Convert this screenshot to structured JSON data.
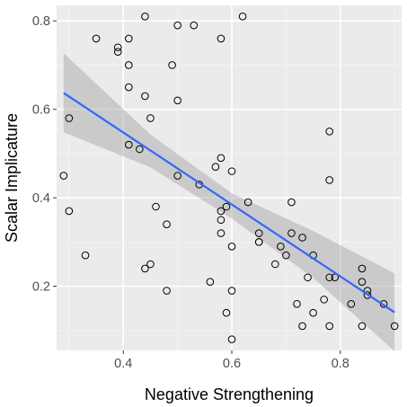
{
  "chart_data": {
    "type": "scatter",
    "title": "",
    "xlabel": "Negative Strengthening",
    "ylabel": "Scalar Implicature",
    "xlim": [
      0.277,
      0.913
    ],
    "ylim": [
      0.055,
      0.835
    ],
    "xticks": [
      0.4,
      0.6,
      0.8
    ],
    "xtick_labels": [
      "0.4",
      "0.6",
      "0.8"
    ],
    "yticks": [
      0.2,
      0.4,
      0.6,
      0.8
    ],
    "ytick_labels": [
      "0.2",
      "0.4",
      "0.6",
      "0.8"
    ],
    "grid": true,
    "legend": "none",
    "points": [
      {
        "x": 0.29,
        "y": 0.45
      },
      {
        "x": 0.3,
        "y": 0.58
      },
      {
        "x": 0.3,
        "y": 0.37
      },
      {
        "x": 0.33,
        "y": 0.27
      },
      {
        "x": 0.35,
        "y": 0.76
      },
      {
        "x": 0.39,
        "y": 0.74
      },
      {
        "x": 0.39,
        "y": 0.73
      },
      {
        "x": 0.41,
        "y": 0.76
      },
      {
        "x": 0.41,
        "y": 0.7
      },
      {
        "x": 0.41,
        "y": 0.65
      },
      {
        "x": 0.41,
        "y": 0.52
      },
      {
        "x": 0.43,
        "y": 0.51
      },
      {
        "x": 0.44,
        "y": 0.81
      },
      {
        "x": 0.44,
        "y": 0.63
      },
      {
        "x": 0.45,
        "y": 0.58
      },
      {
        "x": 0.44,
        "y": 0.24
      },
      {
        "x": 0.45,
        "y": 0.25
      },
      {
        "x": 0.46,
        "y": 0.38
      },
      {
        "x": 0.48,
        "y": 0.34
      },
      {
        "x": 0.48,
        "y": 0.19
      },
      {
        "x": 0.49,
        "y": 0.7
      },
      {
        "x": 0.5,
        "y": 0.79
      },
      {
        "x": 0.5,
        "y": 0.62
      },
      {
        "x": 0.5,
        "y": 0.45
      },
      {
        "x": 0.53,
        "y": 0.79
      },
      {
        "x": 0.54,
        "y": 0.43
      },
      {
        "x": 0.56,
        "y": 0.21
      },
      {
        "x": 0.57,
        "y": 0.47
      },
      {
        "x": 0.58,
        "y": 0.76
      },
      {
        "x": 0.58,
        "y": 0.49
      },
      {
        "x": 0.58,
        "y": 0.37
      },
      {
        "x": 0.58,
        "y": 0.35
      },
      {
        "x": 0.58,
        "y": 0.32
      },
      {
        "x": 0.59,
        "y": 0.38
      },
      {
        "x": 0.59,
        "y": 0.14
      },
      {
        "x": 0.6,
        "y": 0.46
      },
      {
        "x": 0.6,
        "y": 0.29
      },
      {
        "x": 0.6,
        "y": 0.19
      },
      {
        "x": 0.6,
        "y": 0.08
      },
      {
        "x": 0.62,
        "y": 0.81
      },
      {
        "x": 0.63,
        "y": 0.39
      },
      {
        "x": 0.65,
        "y": 0.32
      },
      {
        "x": 0.65,
        "y": 0.3
      },
      {
        "x": 0.65,
        "y": 0.3
      },
      {
        "x": 0.68,
        "y": 0.25
      },
      {
        "x": 0.69,
        "y": 0.29
      },
      {
        "x": 0.7,
        "y": 0.27
      },
      {
        "x": 0.71,
        "y": 0.39
      },
      {
        "x": 0.71,
        "y": 0.32
      },
      {
        "x": 0.72,
        "y": 0.16
      },
      {
        "x": 0.73,
        "y": 0.31
      },
      {
        "x": 0.73,
        "y": 0.11
      },
      {
        "x": 0.74,
        "y": 0.22
      },
      {
        "x": 0.75,
        "y": 0.27
      },
      {
        "x": 0.75,
        "y": 0.14
      },
      {
        "x": 0.77,
        "y": 0.17
      },
      {
        "x": 0.78,
        "y": 0.55
      },
      {
        "x": 0.78,
        "y": 0.44
      },
      {
        "x": 0.78,
        "y": 0.22
      },
      {
        "x": 0.78,
        "y": 0.11
      },
      {
        "x": 0.79,
        "y": 0.22
      },
      {
        "x": 0.82,
        "y": 0.16
      },
      {
        "x": 0.84,
        "y": 0.24
      },
      {
        "x": 0.84,
        "y": 0.21
      },
      {
        "x": 0.84,
        "y": 0.11
      },
      {
        "x": 0.85,
        "y": 0.19
      },
      {
        "x": 0.85,
        "y": 0.18
      },
      {
        "x": 0.88,
        "y": 0.16
      },
      {
        "x": 0.9,
        "y": 0.11
      }
    ],
    "fit_line": {
      "x": [
        0.29,
        0.9
      ],
      "y": [
        0.637,
        0.141
      ]
    },
    "confidence_band": {
      "x": [
        0.29,
        0.45,
        0.6,
        0.75,
        0.9
      ],
      "upper": [
        0.727,
        0.543,
        0.41,
        0.325,
        0.229
      ],
      "lower": [
        0.548,
        0.469,
        0.353,
        0.219,
        0.053
      ]
    },
    "colors": {
      "panel_background": "#ebebeb",
      "grid_major": "#ffffff",
      "grid_minor": "#f5f5f5",
      "fit_line": "#3366ff",
      "band": "#999999",
      "point_stroke": "#000000"
    }
  }
}
